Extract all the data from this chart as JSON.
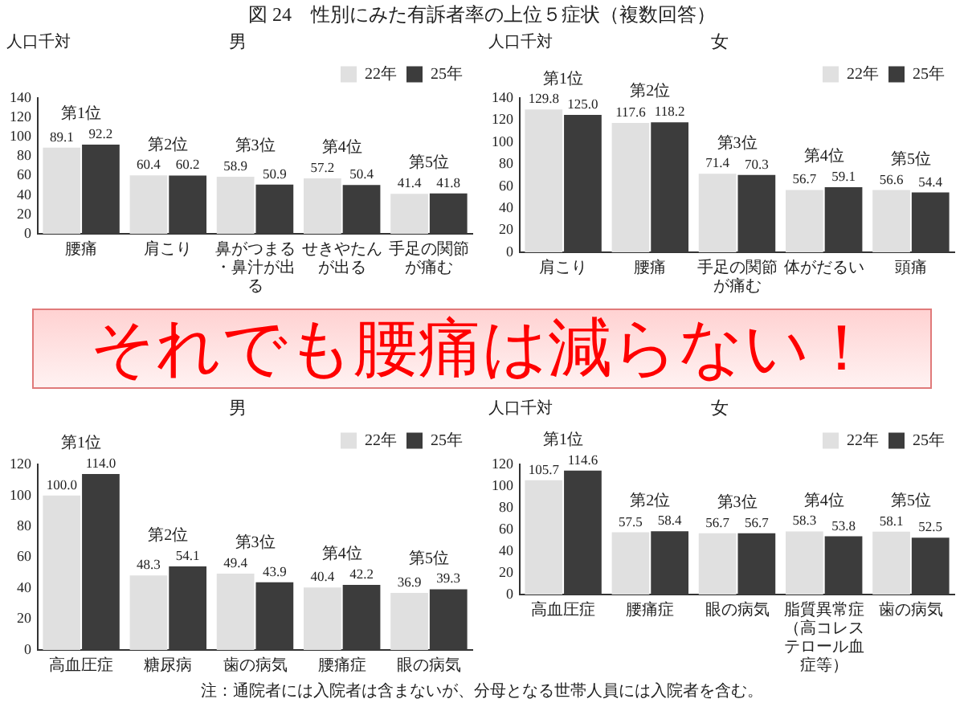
{
  "chart_data": [
    {
      "type": "bar",
      "title": "図 24　性別にみた有訴者率の上位５症状（複数回答）",
      "subtitle": "男",
      "ylabel": "人口千対",
      "categories": [
        "腰痛",
        "肩こり",
        "鼻がつまる・鼻汁が出る",
        "せきやたんが出る",
        "手足の関節が痛む"
      ],
      "series": [
        {
          "name": "22年",
          "color": "#e0e0e0",
          "values": [
            89.1,
            60.4,
            58.9,
            57.2,
            41.4
          ],
          "value_labels": [
            "89.1",
            "60.4",
            "58.9",
            "57.2",
            "41.4"
          ]
        },
        {
          "name": "25年",
          "color": "#3c3c3c",
          "values": [
            92.2,
            60.2,
            50.9,
            50.4,
            41.8
          ],
          "value_labels": [
            "92.2",
            "60.2",
            "50.9",
            "50.4",
            "41.8"
          ]
        }
      ],
      "ylim": [
        0,
        140
      ],
      "yticks": [
        0,
        20,
        40,
        60,
        80,
        100,
        120,
        140
      ],
      "grid": false,
      "legend": "top right",
      "annotations": [
        "第1位",
        "第2位",
        "第3位",
        "第4位",
        "第5位"
      ]
    },
    {
      "type": "bar",
      "title": "女",
      "ylabel": "人口千対",
      "categories": [
        "肩こり",
        "腰痛",
        "手足の関節が痛む",
        "体がだるい",
        "頭痛"
      ],
      "series": [
        {
          "name": "22年",
          "color": "#e0e0e0",
          "values": [
            129.8,
            117.6,
            71.4,
            56.7,
            56.6
          ],
          "value_labels": [
            "129.8",
            "117.6",
            "71.4",
            "56.7",
            "56.6"
          ]
        },
        {
          "name": "25年",
          "color": "#3c3c3c",
          "values": [
            125.0,
            118.2,
            70.3,
            59.1,
            54.4
          ],
          "value_labels": [
            "125.0",
            "118.2",
            "70.3",
            "59.1",
            "54.4"
          ]
        }
      ],
      "ylim": [
        0,
        140
      ],
      "yticks": [
        0,
        20,
        40,
        60,
        80,
        100,
        120,
        140
      ],
      "grid": false,
      "legend": "top right",
      "annotations": [
        "第1位",
        "第2位",
        "第3位",
        "第4位",
        "第5位"
      ]
    },
    {
      "type": "other",
      "title": "それでも腰痛は減らない！"
    },
    {
      "type": "bar",
      "title": "男",
      "categories": [
        "高血圧症",
        "糖尿病",
        "歯の病気",
        "腰痛症",
        "眼の病気"
      ],
      "series": [
        {
          "name": "22年",
          "color": "#e0e0e0",
          "values": [
            100.0,
            48.3,
            49.4,
            40.4,
            36.9
          ],
          "value_labels": [
            "100.0",
            "48.3",
            "49.4",
            "40.4",
            "36.9"
          ]
        },
        {
          "name": "25年",
          "color": "#3c3c3c",
          "values": [
            114.0,
            54.1,
            43.9,
            42.2,
            39.3
          ],
          "value_labels": [
            "114.0",
            "54.1",
            "43.9",
            "42.2",
            "39.3"
          ]
        }
      ],
      "ylim": [
        0,
        120
      ],
      "yticks": [
        0,
        20,
        40,
        60,
        80,
        100,
        120
      ],
      "grid": false,
      "legend": "top right",
      "annotations": [
        "第1位",
        "第2位",
        "第3位",
        "第4位",
        "第5位",
        "注：通院者には入院者は含まないが、分母となる世帯人員には入院者を含む。"
      ]
    },
    {
      "type": "bar",
      "title": "女",
      "ylabel": "人口千対",
      "categories": [
        "高血圧症",
        "腰痛症",
        "眼の病気",
        "脂質異常症（高コレステロール血症等）",
        "歯の病気"
      ],
      "series": [
        {
          "name": "22年",
          "color": "#e0e0e0",
          "values": [
            105.7,
            57.5,
            56.7,
            58.3,
            58.1
          ],
          "value_labels": [
            "105.7",
            "57.5",
            "56.7",
            "58.3",
            "58.1"
          ]
        },
        {
          "name": "25年",
          "color": "#3c3c3c",
          "values": [
            114.6,
            58.4,
            56.7,
            53.8,
            52.5
          ],
          "value_labels": [
            "114.6",
            "58.4",
            "56.7",
            "53.8",
            "52.5"
          ]
        }
      ],
      "ylim": [
        0,
        120
      ],
      "yticks": [
        0,
        20,
        40,
        60,
        80,
        100,
        120
      ],
      "grid": false,
      "legend": "top right",
      "annotations": [
        "第1位",
        "第2位",
        "第3位",
        "第4位",
        "第5位"
      ]
    }
  ]
}
